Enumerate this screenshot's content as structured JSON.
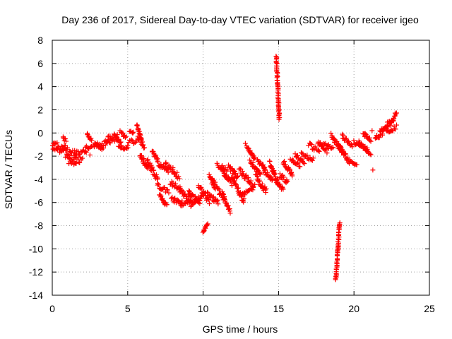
{
  "chart_data": {
    "type": "scatter",
    "title": "Day 236 of 2017, Sidereal Day-to-day VTEC variation (SDTVAR) for receiver igeo",
    "xlabel": "GPS time / hours",
    "ylabel": "SDTVAR / TECUs",
    "xlim": [
      0,
      25
    ],
    "ylim": [
      -14,
      8
    ],
    "xticks": [
      0,
      5,
      10,
      15,
      20,
      25
    ],
    "yticks": [
      -14,
      -12,
      -10,
      -8,
      -6,
      -4,
      -2,
      0,
      2,
      4,
      6,
      8
    ],
    "grid": true,
    "legend": "none",
    "marker": "plus",
    "color": "#ff0000",
    "series": [
      {
        "name": "SDTVAR",
        "segments": [
          [
            0.0,
            1.0,
            -1.5,
            -1.2,
            0.4
          ],
          [
            0.0,
            0.3,
            -1.0,
            -0.9,
            0.2
          ],
          [
            0.3,
            1.6,
            -1.4,
            -1.8,
            0.5
          ],
          [
            0.7,
            0.9,
            -0.4,
            -0.7,
            0.3
          ],
          [
            0.9,
            2.0,
            -2.0,
            -2.4,
            0.5
          ],
          [
            1.1,
            1.6,
            -2.5,
            -2.7,
            0.3
          ],
          [
            1.5,
            2.4,
            -1.8,
            -1.5,
            0.4
          ],
          [
            2.2,
            3.3,
            -1.2,
            -1.1,
            0.4
          ],
          [
            2.3,
            2.6,
            -0.1,
            -0.6,
            0.2
          ],
          [
            2.8,
            3.4,
            -0.8,
            -1.4,
            0.3
          ],
          [
            3.4,
            4.4,
            -1.0,
            -0.3,
            0.5
          ],
          [
            3.7,
            4.0,
            -0.3,
            -0.5,
            0.2
          ],
          [
            4.1,
            4.6,
            -0.2,
            -1.0,
            0.3
          ],
          [
            4.4,
            5.0,
            -1.1,
            -1.4,
            0.3
          ],
          [
            4.5,
            4.9,
            0.1,
            -0.4,
            0.3
          ],
          [
            5.0,
            5.7,
            -0.9,
            -0.6,
            0.4
          ],
          [
            5.1,
            5.4,
            0.1,
            0.0,
            0.2
          ],
          [
            5.6,
            5.9,
            0.7,
            -0.5,
            0.2
          ],
          [
            5.7,
            6.1,
            -0.3,
            -1.2,
            0.4
          ],
          [
            5.8,
            6.3,
            -1.8,
            -3.0,
            0.4
          ],
          [
            6.3,
            7.0,
            -2.4,
            -4.1,
            0.5
          ],
          [
            6.6,
            7.0,
            -1.5,
            -2.3,
            0.3
          ],
          [
            7.0,
            7.7,
            -2.6,
            -3.3,
            0.4
          ],
          [
            7.0,
            7.7,
            -4.6,
            -5.0,
            0.4
          ],
          [
            7.1,
            7.6,
            -5.3,
            -6.3,
            0.3
          ],
          [
            7.5,
            8.4,
            -2.7,
            -3.8,
            0.5
          ],
          [
            7.8,
            8.5,
            -4.3,
            -4.8,
            0.4
          ],
          [
            7.9,
            8.6,
            -5.6,
            -6.2,
            0.4
          ],
          [
            8.4,
            9.2,
            -4.8,
            -5.9,
            0.5
          ],
          [
            8.5,
            9.2,
            -6.1,
            -5.8,
            0.4
          ],
          [
            9.0,
            9.8,
            -5.1,
            -6.1,
            0.5
          ],
          [
            9.2,
            9.9,
            -6.2,
            -5.5,
            0.4
          ],
          [
            9.7,
            10.4,
            -4.6,
            -5.9,
            0.5
          ],
          [
            10.0,
            10.3,
            -8.6,
            -7.8,
            0.2
          ],
          [
            10.3,
            11.0,
            -5.3,
            -6.0,
            0.4
          ],
          [
            10.4,
            10.8,
            -3.6,
            -4.4,
            0.3
          ],
          [
            10.6,
            11.4,
            -4.4,
            -5.5,
            0.5
          ],
          [
            10.9,
            11.6,
            -2.8,
            -3.2,
            0.4
          ],
          [
            11.2,
            11.9,
            -3.0,
            -4.5,
            0.5
          ],
          [
            11.3,
            11.8,
            -5.5,
            -6.8,
            0.3
          ],
          [
            11.7,
            12.3,
            -2.8,
            -3.8,
            0.5
          ],
          [
            11.9,
            12.7,
            -3.8,
            -5.9,
            0.5
          ],
          [
            12.4,
            13.3,
            -3.2,
            -4.5,
            0.5
          ],
          [
            12.6,
            13.4,
            -5.4,
            -4.6,
            0.4
          ],
          [
            12.9,
            13.4,
            -1.1,
            -2.2,
            0.3
          ],
          [
            13.1,
            13.8,
            -2.4,
            -3.6,
            0.4
          ],
          [
            13.5,
            14.2,
            -3.8,
            -5.0,
            0.5
          ],
          [
            13.6,
            14.1,
            -2.4,
            -3.0,
            0.3
          ],
          [
            14.0,
            14.6,
            -3.2,
            -4.0,
            0.4
          ],
          [
            14.4,
            15.0,
            -2.6,
            -4.4,
            0.5
          ],
          [
            14.8,
            15.3,
            -4.0,
            -4.9,
            0.3
          ],
          [
            14.85,
            15.05,
            6.6,
            1.2,
            0.15
          ],
          [
            15.1,
            15.6,
            -3.6,
            -4.3,
            0.4
          ],
          [
            15.3,
            15.9,
            -2.5,
            -3.5,
            0.4
          ],
          [
            15.8,
            16.4,
            -2.3,
            -2.8,
            0.3
          ],
          [
            16.1,
            16.7,
            -1.9,
            -2.5,
            0.3
          ],
          [
            16.5,
            17.3,
            -1.8,
            -2.3,
            0.4
          ],
          [
            17.0,
            17.7,
            -1.0,
            -1.6,
            0.4
          ],
          [
            17.6,
            18.2,
            -0.8,
            -1.6,
            0.4
          ],
          [
            18.0,
            18.6,
            -0.9,
            -1.4,
            0.3
          ],
          [
            18.5,
            19.2,
            -0.2,
            -1.6,
            0.4
          ],
          [
            18.8,
            19.05,
            -12.6,
            -7.7,
            0.2
          ],
          [
            19.0,
            19.7,
            -1.1,
            -2.5,
            0.4
          ],
          [
            19.2,
            19.9,
            -0.3,
            -1.1,
            0.4
          ],
          [
            19.8,
            20.2,
            -2.4,
            -2.8,
            0.2
          ],
          [
            20.0,
            20.5,
            -0.8,
            -1.2,
            0.3
          ],
          [
            20.3,
            20.9,
            -0.8,
            -1.5,
            0.4
          ],
          [
            20.6,
            21.1,
            0.0,
            -0.7,
            0.4
          ],
          [
            20.7,
            21.1,
            -1.4,
            -1.8,
            0.3
          ],
          [
            21.4,
            21.9,
            -0.5,
            -0.1,
            0.3
          ],
          [
            21.7,
            22.2,
            0.2,
            0.4,
            0.3
          ],
          [
            21.9,
            22.5,
            0.1,
            1.2,
            0.5
          ],
          [
            22.2,
            22.8,
            0.0,
            0.5,
            0.4
          ],
          [
            22.4,
            22.8,
            0.7,
            1.7,
            0.4
          ]
        ],
        "points": [
          [
            21.25,
            -3.2
          ],
          [
            21.2,
            0.2
          ],
          [
            4.3,
            -0.4
          ],
          [
            2.5,
            -1.9
          ],
          [
            8.0,
            -3.0
          ],
          [
            12.8,
            -0.9
          ],
          [
            21.5,
            -0.2
          ],
          [
            15.9,
            -3.7
          ]
        ]
      }
    ]
  }
}
